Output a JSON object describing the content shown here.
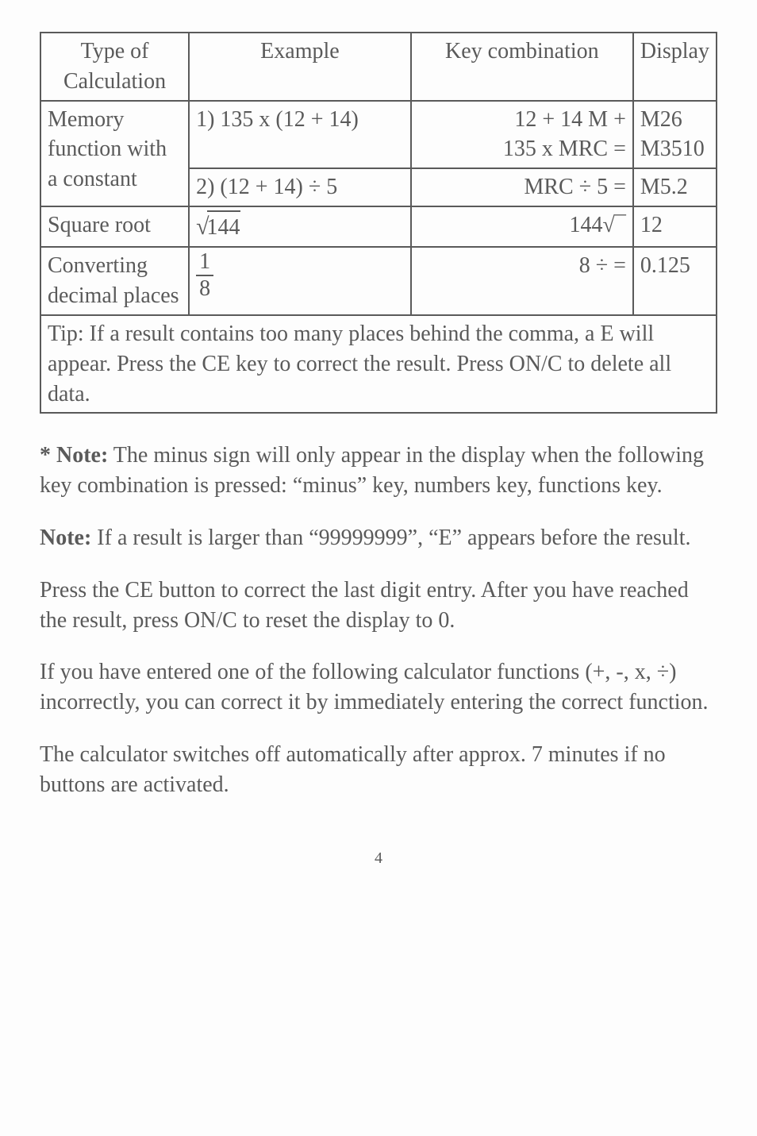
{
  "table": {
    "headers": {
      "type": "Type of Calculation",
      "example": "Example",
      "key": "Key combination",
      "display": "Display"
    },
    "rows": {
      "memory": {
        "type": "Memory function with a constant",
        "ex1": "1) 135 x (12 + 14)",
        "key1a": "12  +  14 M +",
        "key1b": "135  x  MRC  =",
        "disp1a": "M26",
        "disp1b": "M3510",
        "ex2": "2) (12 + 14) ÷ 5",
        "key2": "MRC  ÷  5  =",
        "disp2": "M5.2"
      },
      "sqrt": {
        "type": "Square root",
        "ex_val": "144",
        "key": "144√¯",
        "disp": "12"
      },
      "convert": {
        "type": "Converting decimal places",
        "ex_num": "1",
        "ex_den": "8",
        "key": "8  ÷   =",
        "disp": "0.125"
      }
    },
    "tip": "Tip: If a result contains too many places behind the comma, a E will appear. Press the CE key to correct the result. Press ON/C to delete all data."
  },
  "paragraphs": {
    "note1_label": "* Note:",
    "note1_body": " The minus sign will only appear in the display when the following key combination is pressed: “minus” key, numbers key, functions key.",
    "note2_label": "Note:",
    "note2_body": " If a result is larger than “99999999”, “E” appears before the result.",
    "p3": "Press the CE button to correct the last digit entry. After you have reached the result, press ON/C to reset the display to 0.",
    "p4": "If you have entered one of the following calculator functions (+, -, x, ÷) incorrectly, you can correct it by immediately entering the correct function.",
    "p5": "The calculator switches off automatically after approx. 7 minutes if no buttons are activated."
  },
  "page_number": "4"
}
